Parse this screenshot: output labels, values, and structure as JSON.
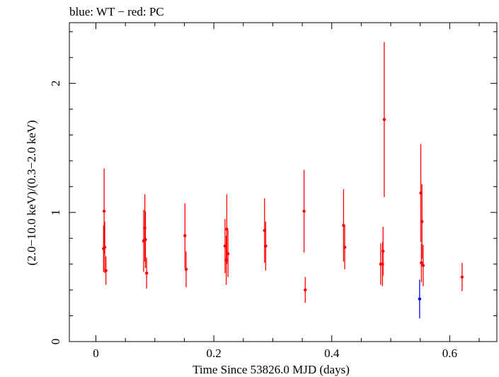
{
  "chart_data": {
    "type": "scatter",
    "title": "blue: WT − red: PC",
    "xlabel": "Time Since 53826.0 MJD (days)",
    "ylabel": "(2.0−10.0 keV)/(0.3−2.0 keV)",
    "xlim": [
      -0.045,
      0.68
    ],
    "ylim": [
      0,
      2.47
    ],
    "x_ticks": [
      0,
      0.2,
      0.4,
      0.6
    ],
    "x_tick_labels": [
      "0",
      "0.2",
      "0.4",
      "0.6"
    ],
    "y_ticks": [
      0,
      1,
      2
    ],
    "y_tick_labels": [
      "0",
      "1",
      "2"
    ],
    "grid": false,
    "series": [
      {
        "name": "PC",
        "color": "#ff0000",
        "points": [
          {
            "x": 0.013,
            "y": 0.72,
            "err": 0.18
          },
          {
            "x": 0.014,
            "y": 1.01,
            "err": 0.33
          },
          {
            "x": 0.015,
            "y": 0.73,
            "err": 0.2
          },
          {
            "x": 0.017,
            "y": 0.55,
            "err": 0.11
          },
          {
            "x": 0.081,
            "y": 0.78,
            "err": 0.24
          },
          {
            "x": 0.083,
            "y": 0.88,
            "err": 0.26
          },
          {
            "x": 0.084,
            "y": 0.79,
            "err": 0.22
          },
          {
            "x": 0.086,
            "y": 0.53,
            "err": 0.12
          },
          {
            "x": 0.151,
            "y": 0.82,
            "err": 0.25
          },
          {
            "x": 0.153,
            "y": 0.56,
            "err": 0.14
          },
          {
            "x": 0.219,
            "y": 0.74,
            "err": 0.21
          },
          {
            "x": 0.221,
            "y": 0.63,
            "err": 0.19
          },
          {
            "x": 0.222,
            "y": 0.87,
            "err": 0.27
          },
          {
            "x": 0.224,
            "y": 0.68,
            "err": 0.18
          },
          {
            "x": 0.286,
            "y": 0.86,
            "err": 0.25
          },
          {
            "x": 0.288,
            "y": 0.74,
            "err": 0.19
          },
          {
            "x": 0.353,
            "y": 1.01,
            "err": 0.32
          },
          {
            "x": 0.355,
            "y": 0.4,
            "err": 0.1
          },
          {
            "x": 0.42,
            "y": 0.9,
            "err": 0.28
          },
          {
            "x": 0.422,
            "y": 0.73,
            "err": 0.17
          },
          {
            "x": 0.483,
            "y": 0.6,
            "err": 0.16
          },
          {
            "x": 0.486,
            "y": 0.6,
            "err": 0.17
          },
          {
            "x": 0.487,
            "y": 0.7,
            "err": 0.19
          },
          {
            "x": 0.489,
            "y": 1.72,
            "err": 0.6
          },
          {
            "x": 0.551,
            "y": 1.15,
            "err": 0.38
          },
          {
            "x": 0.552,
            "y": 0.61,
            "err": 0.15
          },
          {
            "x": 0.553,
            "y": 0.93,
            "err": 0.29
          },
          {
            "x": 0.555,
            "y": 0.59,
            "err": 0.16
          },
          {
            "x": 0.621,
            "y": 0.5,
            "err": 0.11
          }
        ]
      },
      {
        "name": "WT",
        "color": "#0000ff",
        "points": [
          {
            "x": 0.549,
            "y": 0.33,
            "err": 0.15
          }
        ]
      }
    ]
  }
}
